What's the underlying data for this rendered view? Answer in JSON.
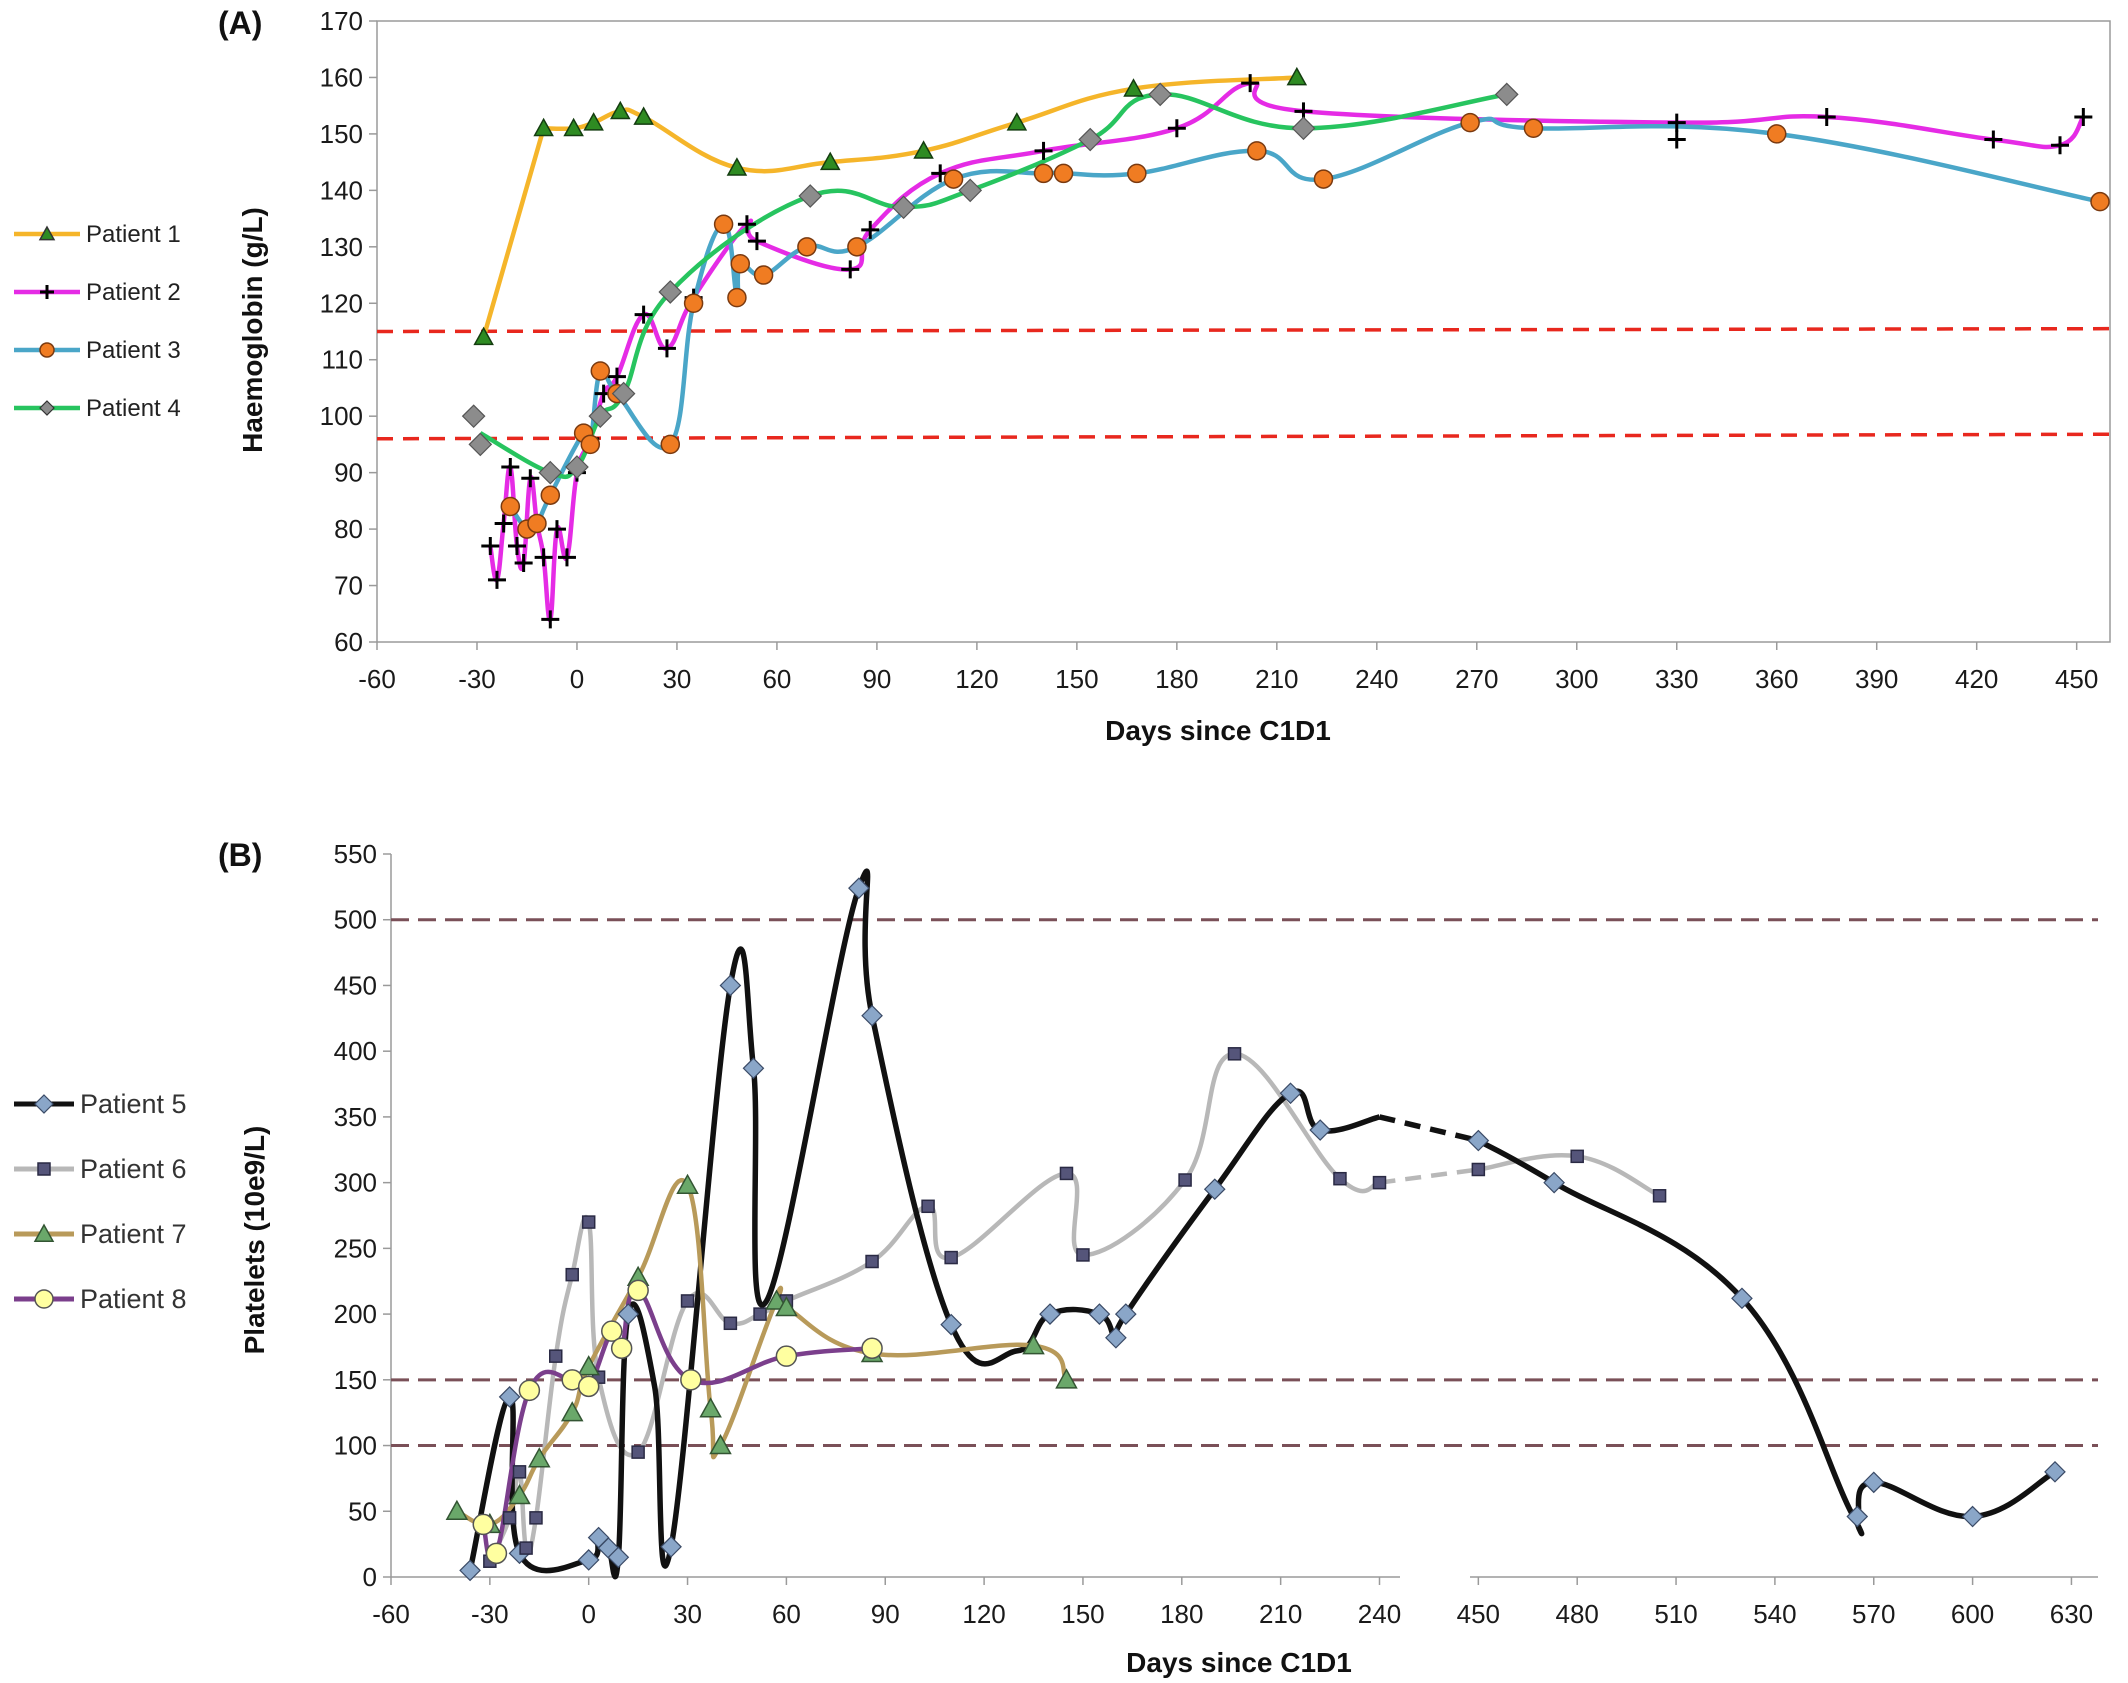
{
  "chart_data": [
    {
      "panel": "(A)",
      "type": "line",
      "xlabel": "Days since C1D1",
      "ylabel": "Haemoglobin (g/L)",
      "xlim": [
        -60,
        460
      ],
      "ylim": [
        60,
        170
      ],
      "xticks": [
        "-60",
        "-30",
        "0",
        "30",
        "60",
        "90",
        "120",
        "150",
        "180",
        "210",
        "240",
        "270",
        "300",
        "330",
        "360",
        "390",
        "420",
        "450"
      ],
      "yticks": [
        "60",
        "70",
        "80",
        "90",
        "100",
        "110",
        "120",
        "130",
        "140",
        "150",
        "160",
        "170"
      ],
      "reference_lines": [
        {
          "y_start": 115,
          "y_end": 115.5,
          "color": "#e8281e"
        },
        {
          "y_start": 96,
          "y_end": 96.8,
          "color": "#e8281e"
        }
      ],
      "legend_position": "left",
      "series": [
        {
          "name": "Patient 1",
          "color": "#f5b52a",
          "marker": "triangle",
          "x": [
            -28,
            -10,
            -1,
            5,
            13,
            20,
            48,
            76,
            104,
            132,
            167,
            216
          ],
          "y": [
            114,
            151,
            151,
            152,
            154,
            153,
            144,
            145,
            147,
            152,
            158,
            160
          ]
        },
        {
          "name": "Patient 2",
          "color": "#e52be5",
          "marker": "plus",
          "x": [
            -26,
            -24,
            -22,
            -20,
            -18,
            -16,
            -14,
            -12,
            -10,
            -8,
            -6,
            -3,
            0,
            4,
            8,
            12,
            20,
            27,
            35,
            51,
            54,
            82,
            88,
            109,
            140,
            180,
            202,
            218,
            330,
            330,
            375,
            425,
            445,
            452
          ],
          "y": [
            77,
            71,
            81,
            91,
            77,
            74,
            89,
            81,
            75,
            64,
            80,
            75,
            90,
            96,
            104,
            107,
            118,
            112,
            121,
            134,
            131,
            126,
            133,
            143,
            147,
            151,
            159,
            154,
            152,
            149,
            153,
            149,
            148,
            153
          ],
          "line_x": [
            -26,
            -24,
            -22,
            -20,
            -18,
            -16,
            -14,
            -12,
            -10,
            -8,
            -6,
            -3,
            0,
            4,
            8,
            12,
            20,
            27,
            35,
            51,
            54,
            82,
            88,
            109,
            140,
            180,
            202,
            218,
            330,
            375,
            425,
            445,
            452
          ],
          "line_y": [
            77,
            71,
            81,
            91,
            77,
            74,
            89,
            81,
            75,
            64,
            80,
            75,
            90,
            96,
            104,
            107,
            118,
            112,
            121,
            134,
            131,
            126,
            133,
            143,
            147,
            151,
            159,
            154,
            152,
            153,
            149,
            148,
            153
          ]
        },
        {
          "name": "Patient 3",
          "color": "#4aa6c8",
          "marker": "circle",
          "x": [
            -20,
            -15,
            -12,
            -8,
            2,
            4,
            7,
            12,
            28,
            35,
            44,
            48,
            49,
            56,
            69,
            84,
            113,
            140,
            146,
            168,
            204,
            224,
            268,
            287,
            360,
            457
          ],
          "y": [
            84,
            80,
            81,
            86,
            97,
            95,
            108,
            104,
            95,
            120,
            134,
            121,
            127,
            125,
            130,
            130,
            142,
            143,
            143,
            143,
            147,
            142,
            152,
            151,
            150,
            138
          ]
        },
        {
          "name": "Patient 4",
          "color": "#27c45f",
          "marker": "diamond",
          "x": [
            -31,
            -29,
            -8,
            0,
            7,
            14,
            28,
            70,
            98,
            118,
            154,
            175,
            218,
            279
          ],
          "y": [
            100,
            95,
            90,
            91,
            100,
            104,
            122,
            139,
            137,
            140,
            149,
            157,
            151,
            157
          ],
          "line_x": [
            -29,
            -8,
            0,
            7,
            14,
            28,
            70,
            98,
            118,
            154,
            175,
            218,
            279
          ],
          "line_y": [
            97,
            90,
            91,
            100,
            104,
            122,
            139,
            137,
            140,
            149,
            157,
            151,
            157
          ]
        }
      ]
    },
    {
      "panel": "(B)",
      "type": "line",
      "xlabel": "Days since C1D1",
      "ylabel": "Platelets  (10e9/L)",
      "axis_break": "x between 240 and 450",
      "xticks": [
        "-60",
        "-30",
        "0",
        "30",
        "60",
        "90",
        "120",
        "150",
        "180",
        "210",
        "240",
        "450",
        "480",
        "510",
        "540",
        "570",
        "600",
        "630"
      ],
      "yticks": [
        "0",
        "50",
        "100",
        "150",
        "200",
        "250",
        "300",
        "350",
        "400",
        "450",
        "500",
        "550"
      ],
      "ylim": [
        0,
        550
      ],
      "reference_lines": [
        {
          "y": 500,
          "color": "#7a5058"
        },
        {
          "y": 150,
          "color": "#7a5058"
        },
        {
          "y": 100,
          "color": "#7a5058"
        }
      ],
      "legend_position": "left",
      "series": [
        {
          "name": "Patient 5",
          "color": "#111111",
          "marker": "diamond",
          "x": [
            -36,
            -24,
            -21,
            0,
            3,
            6,
            9,
            12,
            20,
            25,
            43,
            50,
            54,
            82,
            86,
            110,
            130,
            140,
            155,
            160,
            163,
            190,
            213,
            222,
            240,
            450,
            473,
            530,
            563,
            565,
            570,
            600,
            625
          ],
          "y": [
            5,
            137,
            18,
            13,
            30,
            22,
            15,
            200,
            145,
            23,
            450,
            387,
            210,
            524,
            427,
            192,
            172,
            200,
            200,
            182,
            200,
            295,
            368,
            340,
            350,
            332,
            300,
            212,
            50,
            46,
            72,
            46,
            80
          ],
          "markers_x": [
            -36,
            -24,
            -21,
            0,
            3,
            6,
            9,
            12,
            25,
            43,
            50,
            82,
            86,
            110,
            140,
            155,
            160,
            163,
            190,
            213,
            222,
            450,
            473,
            530,
            565,
            570,
            600,
            625
          ],
          "markers_y": [
            5,
            137,
            18,
            13,
            30,
            22,
            15,
            200,
            23,
            450,
            387,
            524,
            427,
            192,
            200,
            200,
            182,
            200,
            295,
            368,
            340,
            332,
            300,
            212,
            46,
            72,
            46,
            80
          ]
        },
        {
          "name": "Patient 6",
          "color": "#b8b8b8",
          "marker": "square",
          "x": [
            -30,
            -24,
            -21,
            -19,
            -16,
            -10,
            -5,
            0,
            3,
            15,
            30,
            43,
            52,
            60,
            86,
            103,
            110,
            145,
            150,
            181,
            196,
            228,
            240,
            450,
            480,
            505
          ],
          "y": [
            12,
            45,
            80,
            22,
            45,
            168,
            230,
            270,
            152,
            95,
            210,
            193,
            200,
            210,
            240,
            282,
            243,
            307,
            245,
            302,
            398,
            303,
            300,
            310,
            320,
            290
          ]
        },
        {
          "name": "Patient 7",
          "color": "#b89a5a",
          "marker": "triangle",
          "x": [
            -40,
            -30,
            -21,
            -15,
            -5,
            0,
            15,
            30,
            37,
            40,
            57,
            60,
            86,
            135,
            145
          ],
          "y": [
            50,
            40,
            62,
            90,
            125,
            160,
            228,
            298,
            128,
            100,
            210,
            205,
            170,
            176,
            150
          ]
        },
        {
          "name": "Patient 8",
          "color": "#7b3f8c",
          "marker": "circle",
          "x": [
            -32,
            -28,
            -18,
            -5,
            0,
            7,
            10,
            15,
            31,
            60,
            86
          ],
          "y": [
            40,
            18,
            142,
            150,
            145,
            187,
            174,
            218,
            150,
            168,
            174
          ]
        }
      ]
    }
  ]
}
